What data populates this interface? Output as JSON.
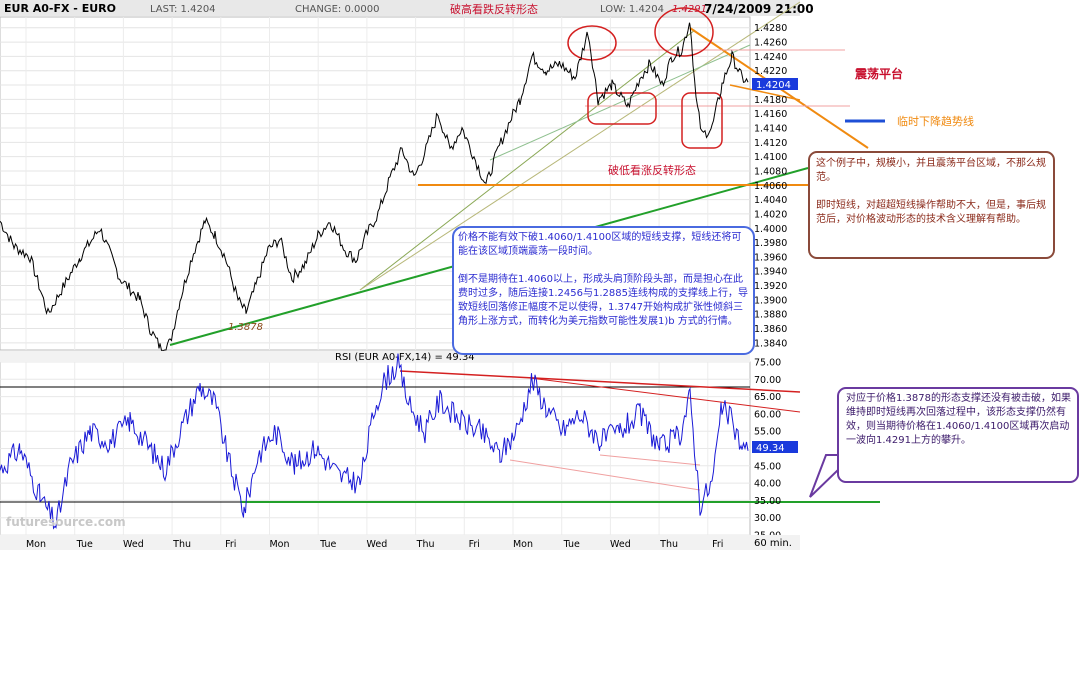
{
  "header": {
    "symbol": "EUR A0-FX - EURO",
    "last": "LAST: 1.4204",
    "change": "CHANGE: 0.0000",
    "title": "破高看跌反转形态",
    "low": "LOW: 1.4204",
    "datetime": "7/24/2009 21:00"
  },
  "colors": {
    "price_line": "#000000",
    "rsi_line": "#1a1ad6",
    "green_line": "#22a02a",
    "orange_line": "#f08a10",
    "red_annot": "#d42020",
    "blue_box": "#4a6ae0",
    "brown_box": "#8a4a3a",
    "purple_box": "#6a3aa0"
  },
  "chart_data": [
    {
      "type": "line",
      "name": "price",
      "ylim": [
        1.383,
        1.4295
      ],
      "yticks": [
        "1.4280",
        "1.4260",
        "1.4240",
        "1.4220",
        "1.4200",
        "1.4180",
        "1.4160",
        "1.4140",
        "1.4120",
        "1.4100",
        "1.4080",
        "1.4060",
        "1.4040",
        "1.4020",
        "1.4000",
        "1.3980",
        "1.3960",
        "1.3940",
        "1.3920",
        "1.3900",
        "1.3880",
        "1.3860",
        "1.3840"
      ],
      "current_label": "1.4204",
      "x_labels": [
        "Mon",
        "Tue",
        "Wed",
        "Thu",
        "Fri",
        "Mon",
        "Tue",
        "Wed",
        "Thu",
        "Fri",
        "Mon",
        "Tue",
        "Wed",
        "Thu",
        "Fri"
      ],
      "x_unit": "60 min.",
      "key_levels": {
        "high": "1.4291",
        "low1": "1.3831",
        "low2": "1.3878"
      },
      "anchors": [
        [
          0,
          1.401
        ],
        [
          14,
          1.3975
        ],
        [
          30,
          1.396
        ],
        [
          48,
          1.388
        ],
        [
          60,
          1.391
        ],
        [
          80,
          1.396
        ],
        [
          100,
          1.4
        ],
        [
          120,
          1.393
        ],
        [
          140,
          1.39
        ],
        [
          150,
          1.386
        ],
        [
          160,
          1.3834
        ],
        [
          170,
          1.384
        ],
        [
          180,
          1.39
        ],
        [
          192,
          1.396
        ],
        [
          205,
          1.401
        ],
        [
          215,
          1.399
        ],
        [
          225,
          1.396
        ],
        [
          238,
          1.39
        ],
        [
          246,
          1.3882
        ],
        [
          256,
          1.392
        ],
        [
          268,
          1.397
        ],
        [
          280,
          1.3985
        ],
        [
          292,
          1.393
        ],
        [
          305,
          1.395
        ],
        [
          318,
          1.399
        ],
        [
          330,
          1.401
        ],
        [
          345,
          1.397
        ],
        [
          356,
          1.3955
        ],
        [
          366,
          1.399
        ],
        [
          378,
          1.402
        ],
        [
          390,
          1.407
        ],
        [
          402,
          1.411
        ],
        [
          414,
          1.407
        ],
        [
          426,
          1.411
        ],
        [
          438,
          1.416
        ],
        [
          450,
          1.411
        ],
        [
          462,
          1.414
        ],
        [
          474,
          1.41
        ],
        [
          486,
          1.406
        ],
        [
          498,
          1.411
        ],
        [
          510,
          1.415
        ],
        [
          520,
          1.418
        ],
        [
          532,
          1.424
        ],
        [
          546,
          1.422
        ],
        [
          560,
          1.423
        ],
        [
          575,
          1.421
        ],
        [
          588,
          1.4275
        ],
        [
          598,
          1.418
        ],
        [
          612,
          1.42
        ],
        [
          628,
          1.417
        ],
        [
          640,
          1.421
        ],
        [
          650,
          1.423
        ],
        [
          662,
          1.42
        ],
        [
          672,
          1.424
        ],
        [
          682,
          1.425
        ],
        [
          690,
          1.429
        ],
        [
          696,
          1.418
        ],
        [
          702,
          1.413
        ],
        [
          712,
          1.414
        ],
        [
          722,
          1.42
        ],
        [
          732,
          1.424
        ],
        [
          742,
          1.421
        ],
        [
          748,
          1.4204
        ]
      ]
    },
    {
      "type": "line",
      "name": "RSI (EUR A0-FX,14) = 49.34",
      "ylim": [
        25,
        75
      ],
      "yticks": [
        "75.00",
        "70.00",
        "65.00",
        "60.00",
        "55.00",
        "50.00",
        "45.00",
        "40.00",
        "35.00",
        "30.00",
        "25.00"
      ],
      "current_label": "49.34",
      "anchors": [
        [
          0,
          44
        ],
        [
          20,
          50
        ],
        [
          40,
          36
        ],
        [
          56,
          28
        ],
        [
          70,
          45
        ],
        [
          90,
          55
        ],
        [
          110,
          52
        ],
        [
          130,
          58
        ],
        [
          150,
          50
        ],
        [
          165,
          44
        ],
        [
          180,
          55
        ],
        [
          200,
          68
        ],
        [
          215,
          63
        ],
        [
          230,
          45
        ],
        [
          244,
          32
        ],
        [
          258,
          48
        ],
        [
          275,
          55
        ],
        [
          295,
          45
        ],
        [
          315,
          50
        ],
        [
          340,
          42
        ],
        [
          360,
          40
        ],
        [
          375,
          62
        ],
        [
          385,
          70
        ],
        [
          398,
          74
        ],
        [
          410,
          62
        ],
        [
          425,
          55
        ],
        [
          440,
          64
        ],
        [
          460,
          58
        ],
        [
          480,
          55
        ],
        [
          500,
          48
        ],
        [
          518,
          56
        ],
        [
          532,
          70
        ],
        [
          546,
          62
        ],
        [
          562,
          55
        ],
        [
          580,
          60
        ],
        [
          600,
          52
        ],
        [
          620,
          55
        ],
        [
          640,
          60
        ],
        [
          660,
          50
        ],
        [
          680,
          54
        ],
        [
          690,
          65
        ],
        [
          700,
          34
        ],
        [
          712,
          40
        ],
        [
          722,
          62
        ],
        [
          732,
          58
        ],
        [
          742,
          50
        ],
        [
          748,
          49.34
        ]
      ]
    }
  ],
  "annotations": {
    "zhendang": "震荡平台",
    "linshi": "临时下降趋势线",
    "polow": "破低看涨反转形态",
    "rsi_title": "RSI (EUR A0-FX,14) = 49.34",
    "logo": "futuresource.com",
    "note_blue": "价格不能有效下破1.4060/1.4100区域的短线支撑，短线还将可能在该区域顶端震荡一段时间。\n\n倒不是期待在1.4060以上，形成头肩顶阶段头部，而是担心在此费时过多，随后连接1.2456与1.2885连线构成的支撑线上行，导致短线回落修正幅度不足以使得，1.3747开始构成扩张性倾斜三角形上涨方式，而转化为美元指数可能性发展1)b 方式的行情。",
    "note_brown": "这个例子中，规模小，并且震荡平台区域，不那么规范。\n\n即时短线，对超超短线操作帮助不大，但是，事后规范后，对价格波动形态的技术含义理解有帮助。",
    "note_purple": "对应于价格1.3878的形态支撑还没有被击破，如果维持即时短线再次回落过程中，该形态支撑仍然有效，则当期待价格在1.4060/1.4100区域再次启动一波向1.4291上方的攀升。"
  }
}
